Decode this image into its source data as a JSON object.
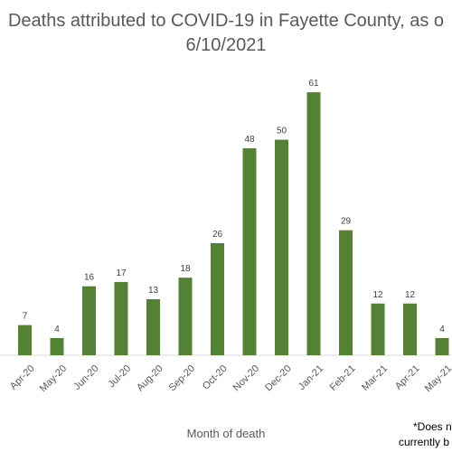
{
  "chart_data": {
    "type": "bar",
    "title_lines": [
      "Deaths attributed to COVID-19 in Fayette County, as o",
      "6/10/2021"
    ],
    "xlabel": "Month of death",
    "ylabel": "",
    "categories": [
      "Apr-20",
      "May-20",
      "Jun-20",
      "Jul-20",
      "Aug-20",
      "Sep-20",
      "Oct-20",
      "Nov-20",
      "Dec-20",
      "Jan-21",
      "Feb-21",
      "Mar-21",
      "Apr-21",
      "May-21"
    ],
    "values": [
      7,
      4,
      16,
      17,
      13,
      18,
      26,
      48,
      50,
      61,
      29,
      12,
      12,
      4
    ],
    "ylim": [
      0,
      65
    ],
    "grid": false,
    "data_labels": true,
    "bar_color": "#548235",
    "note_lines": [
      "*Does n",
      "currently b"
    ]
  }
}
